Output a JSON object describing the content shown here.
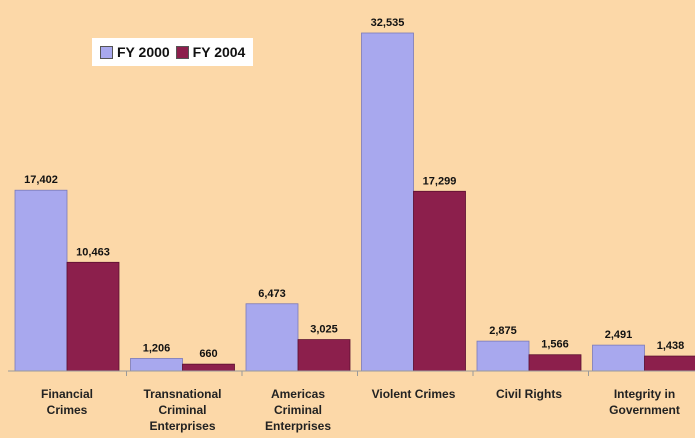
{
  "chart_data": {
    "type": "bar",
    "categories": [
      [
        "Financial",
        "Crimes"
      ],
      [
        "Transnational",
        "Criminal",
        "Enterprises"
      ],
      [
        "Americas",
        "Criminal",
        "Enterprises"
      ],
      [
        "Violent Crimes"
      ],
      [
        "Civil Rights"
      ],
      [
        "Integrity in",
        "Government"
      ]
    ],
    "series": [
      {
        "name": "FY 2000",
        "color": "#a8a8ee",
        "values": [
          17402,
          1206,
          6473,
          32535,
          2875,
          2491
        ],
        "labels": [
          "17,402",
          "1,206",
          "6,473",
          "32,535",
          "2,875",
          "2,491"
        ]
      },
      {
        "name": "FY 2004",
        "color": "#8c1f4c",
        "values": [
          10463,
          660,
          3025,
          17299,
          1566,
          1438
        ],
        "labels": [
          "10,463",
          "660",
          "3,025",
          "17,299",
          "1,566",
          "1,438"
        ]
      }
    ],
    "title": "",
    "xlabel": "",
    "ylabel": "",
    "ylim": [
      0,
      32535
    ],
    "grid": false,
    "legend_position": "top-left",
    "background_color": "#fcd8a8"
  }
}
